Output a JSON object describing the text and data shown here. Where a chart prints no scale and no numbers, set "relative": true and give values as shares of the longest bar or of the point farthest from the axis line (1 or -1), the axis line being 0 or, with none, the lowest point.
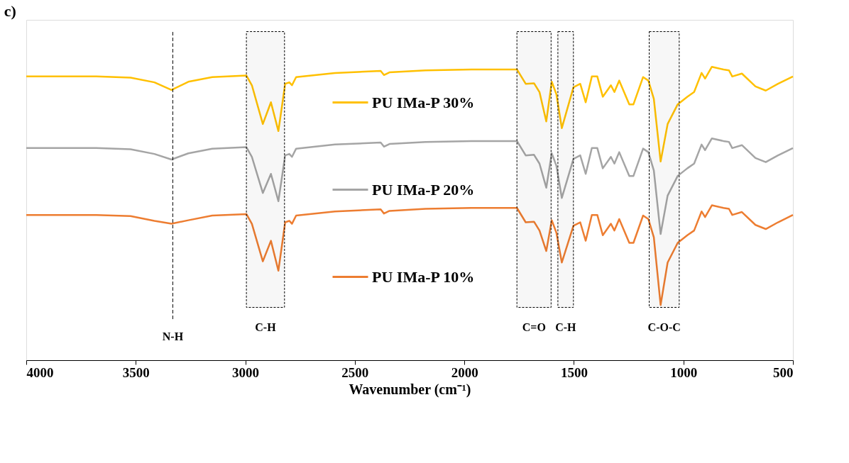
{
  "chart_data": {
    "type": "line",
    "title": "c)",
    "xlabel": "Wavenumber (cm⁻¹)",
    "relative": true,
    "x": [
      4000,
      3680,
      3524,
      3415,
      3337,
      3260,
      3151,
      2995,
      2970,
      2920,
      2883,
      2849,
      2818,
      2799,
      2787,
      2768,
      2591,
      2382,
      2367,
      2342,
      2177,
      1968,
      1760,
      1720,
      1682,
      1657,
      1626,
      1601,
      1580,
      1555,
      1502,
      1471,
      1446,
      1418,
      1393,
      1368,
      1331,
      1315,
      1293,
      1247,
      1228,
      1184,
      1160,
      1135,
      1104,
      1072,
      1026,
      982,
      951,
      917,
      901,
      870,
      817,
      792,
      777,
      733,
      671,
      624,
      568,
      500
    ],
    "series": [
      {
        "name": "PU IMa-P 30%",
        "color": "#ffc000",
        "values": [
          0.967,
          0.967,
          0.963,
          0.947,
          0.921,
          0.949,
          0.965,
          0.97,
          0.937,
          0.805,
          0.879,
          0.781,
          0.942,
          0.947,
          0.937,
          0.965,
          0.979,
          0.986,
          0.972,
          0.981,
          0.988,
          0.991,
          0.991,
          0.942,
          0.944,
          0.914,
          0.814,
          0.949,
          0.907,
          0.791,
          0.93,
          0.942,
          0.879,
          0.967,
          0.967,
          0.898,
          0.937,
          0.914,
          0.953,
          0.872,
          0.872,
          0.965,
          0.953,
          0.891,
          0.677,
          0.805,
          0.872,
          0.898,
          0.914,
          0.979,
          0.96,
          1.0,
          0.991,
          0.988,
          0.967,
          0.977,
          0.933,
          0.919,
          0.942,
          0.967
        ]
      },
      {
        "name": "PU IMa-P 20%",
        "color": "#a5a5a5",
        "values": [
          0.723,
          0.723,
          0.719,
          0.703,
          0.684,
          0.705,
          0.721,
          0.726,
          0.693,
          0.57,
          0.635,
          0.542,
          0.698,
          0.703,
          0.693,
          0.721,
          0.735,
          0.742,
          0.728,
          0.737,
          0.744,
          0.747,
          0.747,
          0.698,
          0.7,
          0.67,
          0.588,
          0.705,
          0.663,
          0.553,
          0.686,
          0.698,
          0.635,
          0.723,
          0.723,
          0.654,
          0.693,
          0.67,
          0.709,
          0.628,
          0.628,
          0.721,
          0.709,
          0.647,
          0.43,
          0.561,
          0.628,
          0.654,
          0.67,
          0.735,
          0.716,
          0.756,
          0.747,
          0.744,
          0.723,
          0.733,
          0.689,
          0.675,
          0.698,
          0.723
        ]
      },
      {
        "name": "PU IMa-P 10%",
        "color": "#ed7d31",
        "values": [
          0.495,
          0.495,
          0.491,
          0.475,
          0.465,
          0.477,
          0.493,
          0.498,
          0.465,
          0.337,
          0.407,
          0.305,
          0.47,
          0.475,
          0.465,
          0.493,
          0.507,
          0.514,
          0.5,
          0.509,
          0.516,
          0.519,
          0.519,
          0.47,
          0.472,
          0.442,
          0.372,
          0.477,
          0.435,
          0.333,
          0.458,
          0.47,
          0.407,
          0.495,
          0.495,
          0.426,
          0.465,
          0.442,
          0.481,
          0.4,
          0.4,
          0.493,
          0.481,
          0.419,
          0.188,
          0.333,
          0.4,
          0.426,
          0.442,
          0.507,
          0.488,
          0.528,
          0.519,
          0.516,
          0.495,
          0.505,
          0.461,
          0.447,
          0.47,
          0.495
        ]
      }
    ],
    "xlim": [
      4000,
      500
    ],
    "xticks": [
      4000,
      3500,
      3000,
      2500,
      2000,
      1500,
      1000,
      500
    ],
    "ref_lines": [
      {
        "axis": "x",
        "value": 3331,
        "label": "N-H",
        "line_style": "dashed"
      }
    ],
    "bands": [
      {
        "axis": "x",
        "from": 2995,
        "to": 2821,
        "label": "C-H"
      },
      {
        "axis": "x",
        "from": 1760,
        "to": 1604,
        "label": "C=O"
      },
      {
        "axis": "x",
        "from": 1573,
        "to": 1502,
        "label": "C-H"
      },
      {
        "axis": "x",
        "from": 1156,
        "to": 1019,
        "label": "C-O-C"
      }
    ],
    "legend": "center",
    "grid": false,
    "marker": "none",
    "line_style": "solid",
    "tick_labels": "x"
  }
}
